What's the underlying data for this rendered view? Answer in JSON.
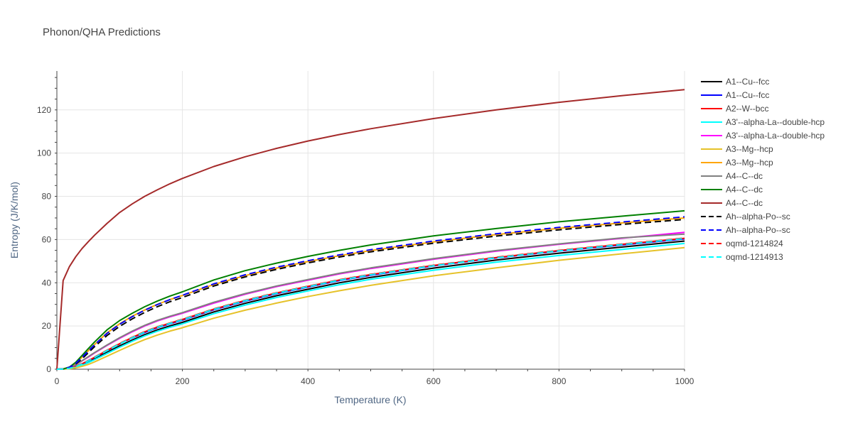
{
  "chart_data": {
    "type": "line",
    "title": "Phonon/QHA Predictions",
    "xlabel": "Temperature (K)",
    "ylabel": "Entropy (J/K/mol)",
    "xlim": [
      0,
      1000
    ],
    "ylim": [
      0,
      138
    ],
    "x_ticks": [
      0,
      200,
      400,
      600,
      800,
      1000
    ],
    "y_ticks": [
      0,
      20,
      40,
      60,
      80,
      100,
      120
    ],
    "grid": true,
    "legend_position": "right",
    "x": [
      0,
      10,
      20,
      30,
      40,
      50,
      60,
      80,
      100,
      120,
      140,
      160,
      180,
      200,
      250,
      300,
      350,
      400,
      450,
      500,
      600,
      700,
      800,
      900,
      1000
    ],
    "series": [
      {
        "name": "A1--Cu--fcc",
        "color": "#000000",
        "dash": "solid",
        "values": [
          0,
          0.05,
          0.3,
          1.0,
          2.0,
          3.3,
          4.8,
          7.8,
          10.8,
          13.5,
          16.0,
          18.2,
          20.0,
          21.7,
          26.5,
          30.5,
          34.0,
          37.0,
          40.0,
          42.5,
          46.8,
          50.5,
          53.7,
          56.5,
          59.3
        ]
      },
      {
        "name": "A1--Cu--fcc",
        "color": "#0000ff",
        "dash": "solid",
        "values": [
          0,
          0.05,
          0.4,
          1.2,
          2.4,
          3.8,
          5.4,
          8.6,
          11.7,
          14.5,
          17.0,
          19.2,
          21.0,
          22.7,
          27.5,
          31.5,
          35.0,
          38.0,
          41.0,
          43.5,
          47.8,
          51.5,
          54.7,
          57.5,
          60.3
        ]
      },
      {
        "name": "A2--W--bcc",
        "color": "#ff0000",
        "dash": "solid",
        "values": [
          0,
          0.05,
          0.45,
          1.3,
          2.5,
          3.9,
          5.5,
          8.7,
          11.8,
          14.7,
          17.3,
          19.5,
          21.3,
          23.0,
          27.8,
          31.8,
          35.3,
          38.3,
          41.3,
          43.8,
          48.0,
          51.7,
          54.9,
          57.8,
          60.6
        ]
      },
      {
        "name": "A3'--alpha-La--double-hcp",
        "color": "#00ffff",
        "dash": "solid",
        "values": [
          0,
          0.05,
          0.3,
          0.9,
          1.8,
          3.0,
          4.4,
          7.3,
          10.2,
          12.9,
          15.4,
          17.6,
          19.4,
          21.0,
          25.7,
          29.7,
          33.2,
          36.2,
          39.1,
          41.6,
          45.8,
          49.5,
          52.6,
          55.4,
          58.2
        ]
      },
      {
        "name": "A3'--alpha-La--double-hcp",
        "color": "#ff00ff",
        "dash": "solid",
        "values": [
          0,
          0.1,
          0.7,
          2.0,
          3.8,
          5.6,
          7.5,
          11.0,
          14.3,
          17.3,
          20.0,
          22.3,
          24.2,
          25.9,
          30.6,
          34.7,
          38.2,
          41.2,
          44.1,
          46.6,
          50.9,
          54.6,
          57.8,
          60.6,
          63.3
        ]
      },
      {
        "name": "A3--Mg--hcp",
        "color": "#e6c229",
        "dash": "solid",
        "values": [
          0,
          0.05,
          0.2,
          0.6,
          1.3,
          2.2,
          3.4,
          6.0,
          8.7,
          11.3,
          13.7,
          15.8,
          17.6,
          19.2,
          23.6,
          27.3,
          30.6,
          33.6,
          36.3,
          38.8,
          43.2,
          46.9,
          50.4,
          53.4,
          56.3
        ]
      },
      {
        "name": "A3--Mg--hcp",
        "color": "#ffa500",
        "dash": "solid",
        "values": [
          0,
          0.1,
          0.9,
          2.8,
          5.5,
          8.5,
          11.4,
          16.8,
          21.0,
          24.5,
          27.4,
          30.0,
          32.2,
          34.1,
          39.2,
          43.3,
          46.8,
          49.8,
          52.5,
          54.9,
          58.9,
          62.3,
          65.2,
          67.7,
          70.0
        ]
      },
      {
        "name": "A4--C--dc",
        "color": "#808080",
        "dash": "solid",
        "values": [
          0,
          0.1,
          0.8,
          2.1,
          3.9,
          5.8,
          7.7,
          11.2,
          14.6,
          17.6,
          20.3,
          22.6,
          24.5,
          26.2,
          31.0,
          35.0,
          38.5,
          41.5,
          44.4,
          46.9,
          51.2,
          54.9,
          58.0,
          60.8,
          62.5
        ]
      },
      {
        "name": "A4--C--dc",
        "color": "#008000",
        "dash": "solid",
        "values": [
          0,
          0.1,
          1.0,
          3.2,
          6.3,
          9.5,
          12.6,
          18.2,
          22.5,
          25.9,
          28.9,
          31.5,
          33.8,
          35.8,
          41.3,
          45.6,
          49.1,
          52.2,
          55.0,
          57.5,
          61.7,
          65.1,
          68.2,
          70.8,
          73.3
        ]
      },
      {
        "name": "A4--C--dc",
        "color": "#a52a2a",
        "dash": "solid",
        "values": [
          0,
          41.0,
          47.5,
          52.0,
          55.8,
          59.0,
          62.0,
          67.5,
          72.5,
          76.5,
          80.0,
          83.0,
          85.8,
          88.3,
          93.8,
          98.3,
          102.2,
          105.6,
          108.6,
          111.3,
          116.0,
          120.0,
          123.5,
          126.6,
          129.4
        ]
      },
      {
        "name": "Ah--alpha-Po--sc",
        "color": "#000000",
        "dash": "dash",
        "values": [
          0,
          0.1,
          0.8,
          2.4,
          4.8,
          7.6,
          10.4,
          15.6,
          19.8,
          23.3,
          26.3,
          28.9,
          31.2,
          33.2,
          38.5,
          42.7,
          46.2,
          49.2,
          51.9,
          54.3,
          58.3,
          61.6,
          64.5,
          67.0,
          69.3
        ]
      },
      {
        "name": "Ah--alpha-Po--sc",
        "color": "#0000ff",
        "dash": "dash",
        "values": [
          0,
          0.1,
          0.9,
          2.7,
          5.4,
          8.4,
          11.3,
          16.6,
          20.8,
          24.3,
          27.3,
          29.9,
          32.2,
          34.2,
          39.5,
          43.7,
          47.2,
          50.2,
          52.9,
          55.3,
          59.3,
          62.7,
          65.6,
          68.1,
          70.5
        ]
      },
      {
        "name": "oqmd-1214824",
        "color": "#ff0000",
        "dash": "dash",
        "values": [
          0,
          0.05,
          0.45,
          1.3,
          2.6,
          4.0,
          5.6,
          8.8,
          11.9,
          14.8,
          17.4,
          19.6,
          21.4,
          23.1,
          27.9,
          31.9,
          35.4,
          38.4,
          41.4,
          43.9,
          48.1,
          51.8,
          55.0,
          57.9,
          60.7
        ]
      },
      {
        "name": "oqmd-1214913",
        "color": "#00ffff",
        "dash": "dash",
        "values": [
          0,
          0.05,
          0.4,
          1.2,
          2.4,
          3.8,
          5.4,
          8.6,
          11.7,
          14.6,
          17.2,
          19.4,
          21.2,
          22.9,
          27.7,
          31.7,
          35.2,
          38.2,
          41.2,
          43.7,
          47.9,
          51.6,
          54.8,
          57.7,
          60.5
        ]
      }
    ]
  }
}
